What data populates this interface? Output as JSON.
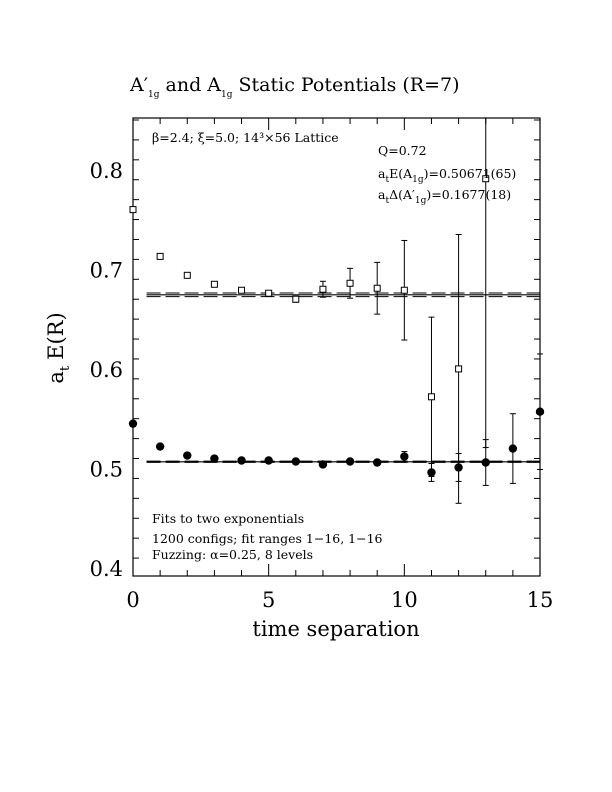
{
  "chart_data": {
    "type": "scatter",
    "title": "A′₁g and A₁g Static Potentials (R=7)",
    "title_parts": {
      "a_prime": "A′",
      "sub1": "1g",
      "and": "and",
      "a": "A",
      "sub2": "1g",
      "rest": "Static Potentials (R=7)"
    },
    "xlabel": "time separation",
    "ylabel": "a",
    "ylabel_sub": "t",
    "ylabel_rest": "E(R)",
    "xlim": [
      0,
      15
    ],
    "ylim": [
      0.392,
      0.852
    ],
    "x_ticks": [
      0,
      5,
      10,
      15
    ],
    "x_tick_labels": [
      "0",
      "5",
      "10",
      "15"
    ],
    "y_ticks": [
      0.4,
      0.5,
      0.6,
      0.7,
      0.8
    ],
    "y_tick_labels": [
      "0.4",
      "0.5",
      "0.6",
      "0.7",
      "0.8"
    ],
    "grid": false,
    "legend": "none",
    "annotations": {
      "lattice": "β=2.4; ξ=5.0; 14³×56 Lattice",
      "q": "Q=0.72",
      "e_a1g_prefix": "a",
      "e_a1g_sub_t": "t",
      "e_a1g_mid": "E(A",
      "e_a1g_sub": "1g",
      "e_a1g_value": ")=0.50671(65)",
      "d_a1g_prefix": "a",
      "d_a1g_sub_t": "t",
      "d_a1g_mid": "Δ(A′",
      "d_a1g_sub": "1g",
      "d_a1g_value": ")=0.1677(18)",
      "fits": "Fits to two exponentials",
      "configs": "1200 configs; fit ranges 1−16, 1−16",
      "fuzzing": "Fuzzing: α=0.25, 8 levels"
    },
    "series": [
      {
        "marker": "open-square",
        "points": [
          {
            "x": 0,
            "y": 0.76,
            "err": 0.0
          },
          {
            "x": 1,
            "y": 0.713,
            "err": 0.0
          },
          {
            "x": 2,
            "y": 0.694,
            "err": 0.0
          },
          {
            "x": 3,
            "y": 0.685,
            "err": 0.0
          },
          {
            "x": 4,
            "y": 0.679,
            "err": 0.0
          },
          {
            "x": 5,
            "y": 0.676,
            "err": 0.0
          },
          {
            "x": 6,
            "y": 0.67,
            "err": 0.003
          },
          {
            "x": 7,
            "y": 0.68,
            "err": 0.008
          },
          {
            "x": 8,
            "y": 0.686,
            "err": 0.015
          },
          {
            "x": 9,
            "y": 0.681,
            "err": 0.026
          },
          {
            "x": 10,
            "y": 0.679,
            "err": 0.05
          },
          {
            "x": 11,
            "y": 0.572,
            "err": 0.08
          },
          {
            "x": 12,
            "y": 0.6,
            "err": 0.135
          },
          {
            "x": 13,
            "y": 0.791,
            "err": 0.27
          }
        ],
        "fit_value": 0.6744,
        "fit_band": [
          0.6726,
          0.6762
        ],
        "fit_x": [
          0.5,
          15
        ]
      },
      {
        "marker": "filled-circle",
        "points": [
          {
            "x": 0,
            "y": 0.545,
            "err": 0.0
          },
          {
            "x": 1,
            "y": 0.522,
            "err": 0.0
          },
          {
            "x": 2,
            "y": 0.513,
            "err": 0.0
          },
          {
            "x": 3,
            "y": 0.51,
            "err": 0.0
          },
          {
            "x": 4,
            "y": 0.508,
            "err": 0.0
          },
          {
            "x": 5,
            "y": 0.508,
            "err": 0.0
          },
          {
            "x": 6,
            "y": 0.507,
            "err": 0.0
          },
          {
            "x": 7,
            "y": 0.504,
            "err": 0.0
          },
          {
            "x": 8,
            "y": 0.507,
            "err": 0.0
          },
          {
            "x": 9,
            "y": 0.506,
            "err": 0.0
          },
          {
            "x": 10,
            "y": 0.512,
            "err": 0.005
          },
          {
            "x": 11,
            "y": 0.496,
            "err": 0.009
          },
          {
            "x": 12,
            "y": 0.501,
            "err": 0.014
          },
          {
            "x": 13,
            "y": 0.506,
            "err": 0.023
          },
          {
            "x": 14,
            "y": 0.52,
            "err": 0.035
          },
          {
            "x": 15,
            "y": 0.557,
            "err": 0.058
          }
        ],
        "fit_value": 0.50671,
        "fit_band": [
          0.50606,
          0.50736
        ],
        "fit_x": [
          0.5,
          15
        ]
      }
    ]
  }
}
